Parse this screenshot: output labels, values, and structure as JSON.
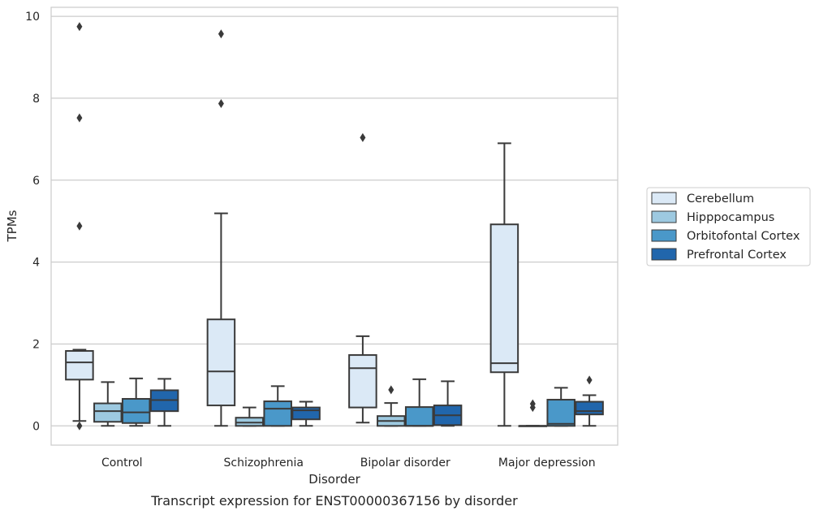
{
  "chart_data": {
    "type": "box",
    "xlabel": "Disorder",
    "ylabel": "TPMs",
    "caption": "Transcript expression for ENST00000367156 by disorder",
    "categories": [
      "Control",
      "Schizophrenia",
      "Bipolar disorder",
      "Major depression"
    ],
    "ylim": [
      -0.47,
      10.22
    ],
    "yticks": [
      0,
      2,
      4,
      6,
      8,
      10
    ],
    "grid": true,
    "legend": {
      "placement": "right",
      "entries": [
        "Cerebellum",
        "Hipppocampus",
        "Orbitofontal Cortex",
        "Prefrontal Cortex"
      ]
    },
    "colors": {
      "Cerebellum": "#dbe9f6",
      "Hipppocampus": "#9dc9e0",
      "Orbitofontal Cortex": "#4a98c9",
      "Prefrontal Cortex": "#2166ac",
      "line": "#3a3a3a",
      "grid": "#cccccc"
    },
    "series": [
      {
        "name": "Cerebellum",
        "boxes": [
          {
            "q1": 1.13,
            "median": 1.55,
            "q3": 1.83,
            "whisker_low": 0.12,
            "whisker_high": 1.86,
            "outliers": [
              9.75,
              7.52,
              4.88,
              0.0
            ]
          },
          {
            "q1": 0.5,
            "median": 1.33,
            "q3": 2.6,
            "whisker_low": 0.0,
            "whisker_high": 5.19,
            "outliers": [
              9.57,
              7.87
            ]
          },
          {
            "q1": 0.45,
            "median": 1.41,
            "q3": 1.73,
            "whisker_low": 0.08,
            "whisker_high": 2.19,
            "outliers": [
              7.04
            ]
          },
          {
            "q1": 1.31,
            "median": 1.53,
            "q3": 4.92,
            "whisker_low": 0.0,
            "whisker_high": 6.9,
            "outliers": []
          }
        ]
      },
      {
        "name": "Hipppocampus",
        "boxes": [
          {
            "q1": 0.1,
            "median": 0.36,
            "q3": 0.55,
            "whisker_low": 0.0,
            "whisker_high": 1.07,
            "outliers": []
          },
          {
            "q1": 0.0,
            "median": 0.08,
            "q3": 0.2,
            "whisker_low": 0.0,
            "whisker_high": 0.45,
            "outliers": []
          },
          {
            "q1": 0.0,
            "median": 0.12,
            "q3": 0.24,
            "whisker_low": 0.0,
            "whisker_high": 0.56,
            "outliers": [
              0.88
            ]
          },
          {
            "q1": 0.0,
            "median": 0.0,
            "q3": 0.0,
            "whisker_low": 0.0,
            "whisker_high": 0.0,
            "outliers": [
              0.54,
              0.45
            ]
          }
        ]
      },
      {
        "name": "Orbitofontal Cortex",
        "boxes": [
          {
            "q1": 0.07,
            "median": 0.33,
            "q3": 0.66,
            "whisker_low": 0.0,
            "whisker_high": 1.16,
            "outliers": []
          },
          {
            "q1": 0.0,
            "median": 0.42,
            "q3": 0.6,
            "whisker_low": 0.0,
            "whisker_high": 0.97,
            "outliers": []
          },
          {
            "q1": 0.0,
            "median": 0.0,
            "q3": 0.46,
            "whisker_low": 0.0,
            "whisker_high": 1.14,
            "outliers": []
          },
          {
            "q1": 0.0,
            "median": 0.05,
            "q3": 0.64,
            "whisker_low": 0.0,
            "whisker_high": 0.93,
            "outliers": []
          }
        ]
      },
      {
        "name": "Prefrontal Cortex",
        "boxes": [
          {
            "q1": 0.36,
            "median": 0.63,
            "q3": 0.87,
            "whisker_low": 0.0,
            "whisker_high": 1.15,
            "outliers": []
          },
          {
            "q1": 0.16,
            "median": 0.38,
            "q3": 0.45,
            "whisker_low": 0.0,
            "whisker_high": 0.59,
            "outliers": []
          },
          {
            "q1": 0.02,
            "median": 0.26,
            "q3": 0.5,
            "whisker_low": 0.0,
            "whisker_high": 1.09,
            "outliers": []
          },
          {
            "q1": 0.28,
            "median": 0.36,
            "q3": 0.59,
            "whisker_low": 0.0,
            "whisker_high": 0.75,
            "outliers": [
              1.12
            ]
          }
        ]
      }
    ]
  }
}
